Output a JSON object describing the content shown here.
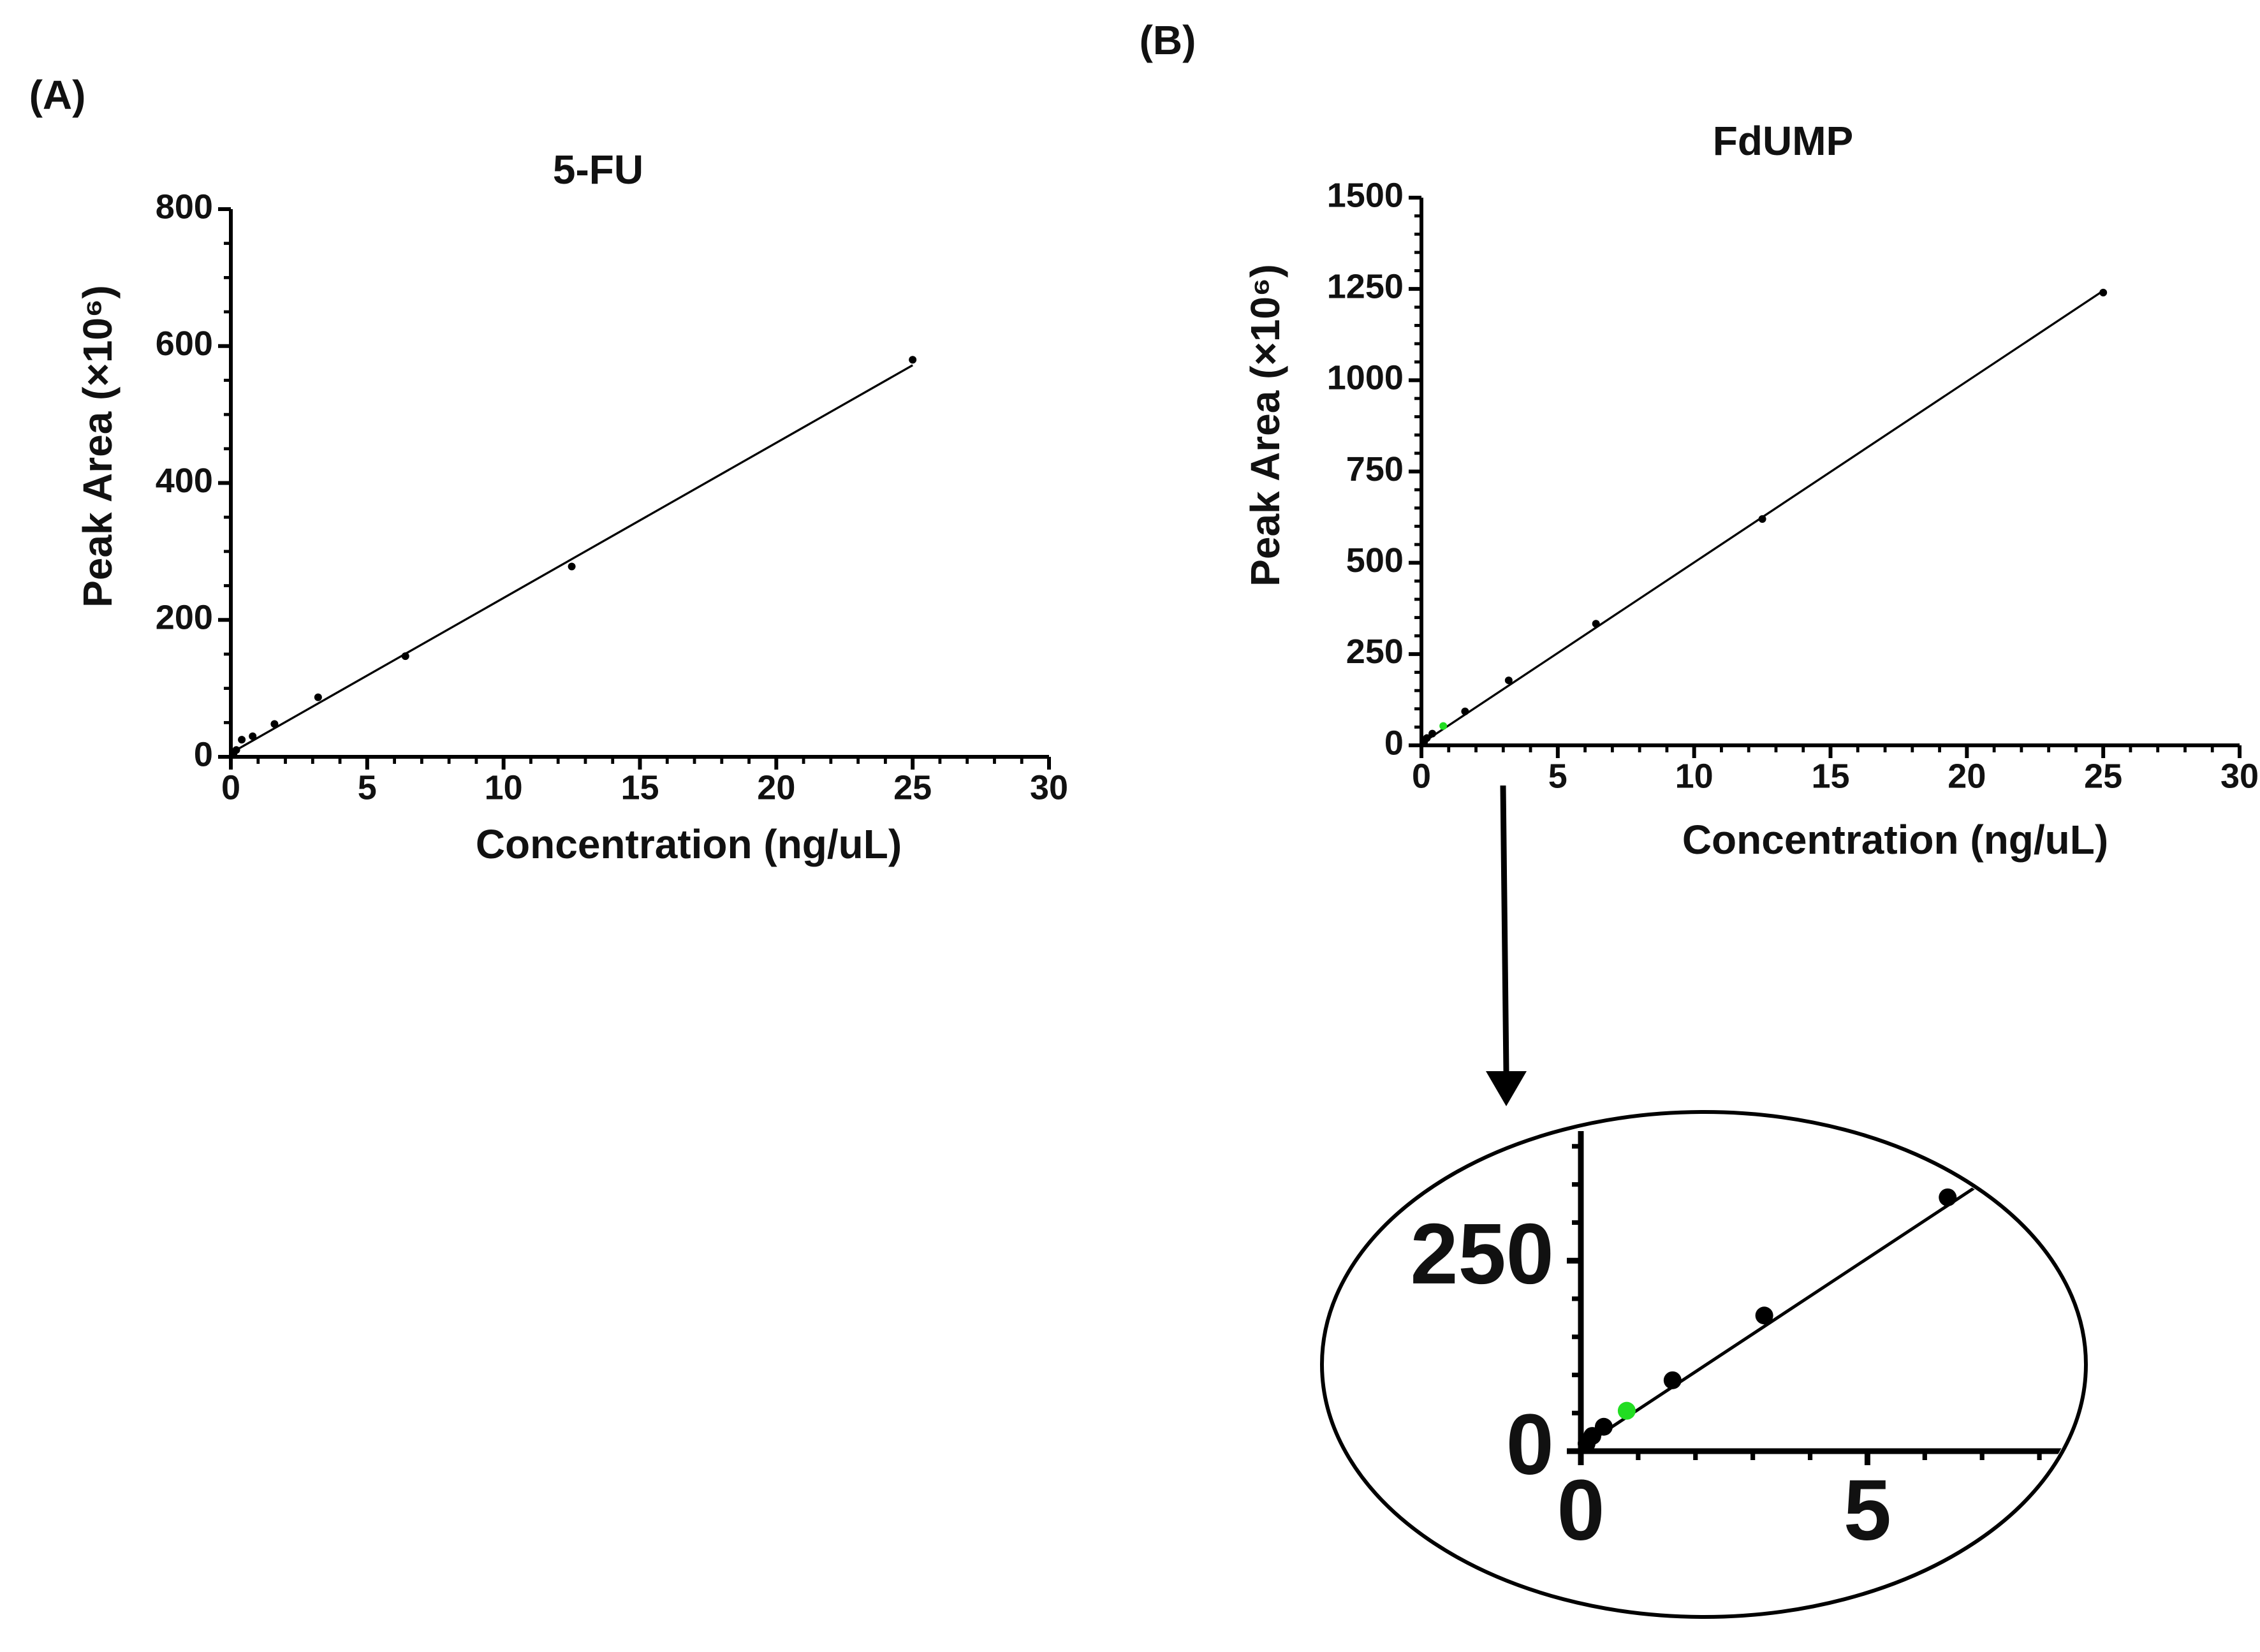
{
  "chart_data": [
    {
      "type": "scatter",
      "panel_label": "(A)",
      "title": "5-FU",
      "xlabel": "Concentration (ng/uL)",
      "ylabel": "Peak Area (×10⁶)",
      "x": [
        0.1,
        0.2,
        0.4,
        0.8,
        1.6,
        3.2,
        6.4,
        12.5,
        25
      ],
      "values": [
        5,
        10,
        25,
        30,
        48,
        87,
        147,
        278,
        580
      ],
      "colors": [
        "#000000",
        "#000000",
        "#000000",
        "#000000",
        "#000000",
        "#000000",
        "#000000",
        "#000000",
        "#000000"
      ],
      "fit": {
        "x": [
          0.2,
          25
        ],
        "values": [
          10,
          572
        ],
        "color": "#000000"
      },
      "xlim": [
        0,
        30
      ],
      "xticks": [
        0,
        5,
        10,
        15,
        20,
        25,
        30
      ],
      "x_minor_divisions": 5,
      "ylim": [
        0,
        800
      ],
      "yticks": [
        0,
        200,
        400,
        600,
        800
      ],
      "y_minor_divisions": 4
    },
    {
      "type": "scatter",
      "panel_label": "(B)",
      "title": "FdUMP",
      "xlabel": "Concentration (ng/uL)",
      "ylabel": "Peak Area (×10⁶)",
      "x": [
        0.1,
        0.2,
        0.4,
        0.8,
        1.6,
        3.2,
        6.4,
        12.5,
        25
      ],
      "values": [
        10,
        20,
        32,
        53,
        93,
        178,
        333,
        620,
        1240
      ],
      "colors": [
        "#000000",
        "#000000",
        "#000000",
        "#22dd22",
        "#000000",
        "#000000",
        "#000000",
        "#000000",
        "#000000"
      ],
      "fit": {
        "x": [
          0,
          25
        ],
        "values": [
          5,
          1245
        ],
        "color": "#000000"
      },
      "xlim": [
        0,
        30
      ],
      "xticks": [
        0,
        5,
        10,
        15,
        20,
        25,
        30
      ],
      "x_minor_divisions": 5,
      "ylim": [
        0,
        1500
      ],
      "yticks": [
        0,
        250,
        500,
        750,
        1000,
        1250,
        1500
      ],
      "y_minor_divisions": 5
    },
    {
      "type": "inset",
      "xlim": [
        0,
        8.5
      ],
      "xticks": [
        0,
        5
      ],
      "x_minor_divisions": 5,
      "ylim": [
        0,
        420
      ],
      "yticks": [
        0,
        250
      ],
      "y_minor_divisions": 5
    }
  ]
}
